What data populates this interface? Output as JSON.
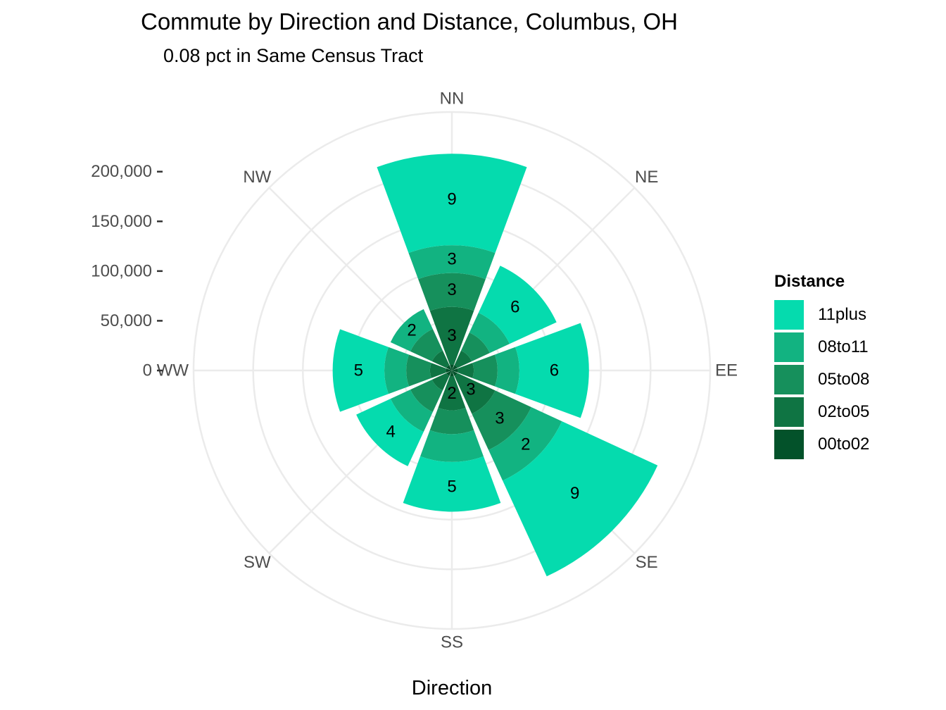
{
  "title": "Commute by Direction and Distance, Columbus, OH",
  "subtitle": "0.08 pct in Same Census Tract",
  "chart_data": {
    "type": "bar",
    "coordinate_system": "polar",
    "stacked": true,
    "categories": [
      "NN",
      "NE",
      "EE",
      "SE",
      "SS",
      "SW",
      "WW",
      "NW"
    ],
    "series": [
      {
        "name": "00to02",
        "color": "#03522a",
        "values": [
          6000,
          6000,
          6000,
          6000,
          6000,
          6000,
          6000,
          6000
        ]
      },
      {
        "name": "02to05",
        "color": "#0f7443",
        "values": [
          58000,
          16000,
          16000,
          42000,
          34000,
          16000,
          16000,
          16000
        ]
      },
      {
        "name": "05to08",
        "color": "#16905c",
        "values": [
          34000,
          20000,
          24000,
          40000,
          24000,
          24000,
          24000,
          24000
        ]
      },
      {
        "name": "08to11",
        "color": "#12b381",
        "values": [
          28000,
          22000,
          22000,
          34000,
          28000,
          22000,
          22000,
          22000
        ]
      },
      {
        "name": "11plus",
        "color": "#05dbae",
        "values": [
          92000,
          52000,
          70000,
          106000,
          50000,
          38000,
          52000,
          0
        ]
      }
    ],
    "bar_labels": [
      {
        "category": "NN",
        "series": "11plus",
        "text": "9"
      },
      {
        "category": "NN",
        "series": "08to11",
        "text": "3"
      },
      {
        "category": "NN",
        "series": "05to08",
        "text": "3"
      },
      {
        "category": "NN",
        "series": "02to05",
        "text": "3"
      },
      {
        "category": "NE",
        "series": "11plus",
        "text": "6"
      },
      {
        "category": "EE",
        "series": "11plus",
        "text": "6"
      },
      {
        "category": "SE",
        "series": "11plus",
        "text": "9"
      },
      {
        "category": "SE",
        "series": "08to11",
        "text": "2"
      },
      {
        "category": "SE",
        "series": "05to08",
        "text": "3"
      },
      {
        "category": "SE",
        "series": "02to05",
        "text": "3"
      },
      {
        "category": "SS",
        "series": "11plus",
        "text": "5"
      },
      {
        "category": "SS",
        "series": "02to05",
        "text": "2"
      },
      {
        "category": "SW",
        "series": "11plus",
        "text": "4"
      },
      {
        "category": "WW",
        "series": "11plus",
        "text": "5"
      },
      {
        "category": "NW",
        "series": "08to11",
        "text": "2"
      }
    ],
    "radial_ticks": [
      0,
      50000,
      100000,
      150000,
      200000
    ],
    "radial_tick_labels": [
      "0",
      "50,000",
      "100,000",
      "150,000",
      "200,000"
    ],
    "ylim": [
      0,
      260000
    ],
    "xlabel": "Direction",
    "ylabel": "",
    "legend_title": "Distance",
    "legend_order": [
      "11plus",
      "08to11",
      "05to08",
      "02to05",
      "00to02"
    ],
    "legend_position": "right",
    "grid": true,
    "grid_color": "#ebebeb"
  }
}
